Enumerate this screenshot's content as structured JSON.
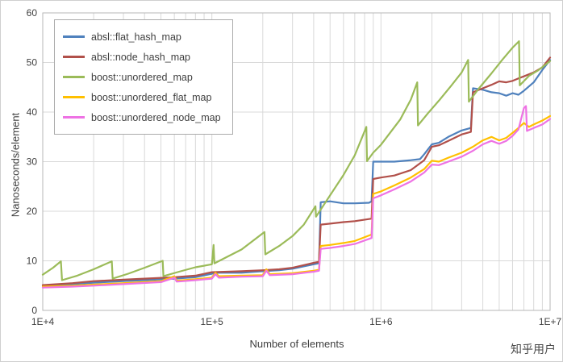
{
  "watermark": {
    "text": "知乎用户"
  },
  "chart_data": {
    "type": "line",
    "title": "",
    "xlabel": "Number of elements",
    "ylabel": "Nanoseconds/element",
    "x_scale": "log",
    "xlim": [
      10000,
      10000000
    ],
    "ylim": [
      0,
      60
    ],
    "y_ticks": [
      0,
      10,
      20,
      30,
      40,
      50,
      60
    ],
    "x_tick_values": [
      10000,
      100000,
      1000000,
      10000000
    ],
    "x_tick_labels": [
      "1E+4",
      "1E+5",
      "1E+6",
      "1E+7"
    ],
    "grid": true,
    "legend_position": "top-left",
    "grid_color": "#d9d9d9",
    "border_color": "#b7b7b7",
    "tick_color": "#3f3f3f",
    "series": [
      {
        "name": "absl::flat_hash_map",
        "color": "#4f81bd",
        "points": [
          [
            10000,
            5.0
          ],
          [
            15000,
            5.3
          ],
          [
            20000,
            5.6
          ],
          [
            30000,
            5.9
          ],
          [
            40000,
            6.1
          ],
          [
            60000,
            6.4
          ],
          [
            80000,
            6.7
          ],
          [
            100000,
            7.4
          ],
          [
            110000,
            7.6
          ],
          [
            150000,
            7.6
          ],
          [
            200000,
            7.9
          ],
          [
            250000,
            8.1
          ],
          [
            300000,
            8.4
          ],
          [
            400000,
            9.3
          ],
          [
            430000,
            9.5
          ],
          [
            440000,
            21.8
          ],
          [
            500000,
            22.0
          ],
          [
            600000,
            21.6
          ],
          [
            700000,
            21.6
          ],
          [
            850000,
            21.7
          ],
          [
            880000,
            22.0
          ],
          [
            900000,
            30.0
          ],
          [
            1000000,
            30.0
          ],
          [
            1200000,
            30.0
          ],
          [
            1500000,
            30.3
          ],
          [
            1700000,
            30.5
          ],
          [
            1800000,
            31.5
          ],
          [
            2000000,
            33.5
          ],
          [
            2200000,
            33.8
          ],
          [
            2500000,
            35.0
          ],
          [
            3000000,
            36.3
          ],
          [
            3400000,
            36.8
          ],
          [
            3500000,
            44.8
          ],
          [
            4000000,
            44.5
          ],
          [
            4500000,
            44.0
          ],
          [
            5000000,
            43.8
          ],
          [
            5500000,
            43.3
          ],
          [
            6000000,
            43.8
          ],
          [
            6500000,
            43.5
          ],
          [
            7000000,
            44.3
          ],
          [
            8000000,
            46.0
          ],
          [
            9000000,
            48.5
          ],
          [
            10000000,
            50.5
          ]
        ]
      },
      {
        "name": "absl::node_hash_map",
        "color": "#b1504a",
        "points": [
          [
            10000,
            5.1
          ],
          [
            15000,
            5.5
          ],
          [
            20000,
            5.9
          ],
          [
            30000,
            6.2
          ],
          [
            40000,
            6.4
          ],
          [
            60000,
            6.7
          ],
          [
            80000,
            7.0
          ],
          [
            100000,
            7.7
          ],
          [
            150000,
            7.9
          ],
          [
            200000,
            8.1
          ],
          [
            250000,
            8.3
          ],
          [
            300000,
            8.6
          ],
          [
            400000,
            9.6
          ],
          [
            430000,
            9.8
          ],
          [
            440000,
            17.3
          ],
          [
            500000,
            17.5
          ],
          [
            600000,
            17.8
          ],
          [
            700000,
            18.0
          ],
          [
            880000,
            18.5
          ],
          [
            900000,
            26.5
          ],
          [
            1000000,
            26.8
          ],
          [
            1200000,
            27.2
          ],
          [
            1500000,
            28.3
          ],
          [
            1800000,
            30.3
          ],
          [
            2000000,
            33.0
          ],
          [
            2200000,
            33.3
          ],
          [
            2500000,
            34.2
          ],
          [
            3000000,
            35.5
          ],
          [
            3400000,
            36.0
          ],
          [
            3500000,
            44.0
          ],
          [
            4000000,
            44.8
          ],
          [
            4500000,
            45.5
          ],
          [
            5000000,
            46.2
          ],
          [
            5500000,
            46.0
          ],
          [
            6000000,
            46.3
          ],
          [
            6500000,
            46.8
          ],
          [
            7000000,
            47.2
          ],
          [
            8000000,
            48.0
          ],
          [
            9000000,
            49.0
          ],
          [
            10000000,
            51.0
          ]
        ]
      },
      {
        "name": "boost::unordered_map",
        "color": "#9bbb59",
        "points": [
          [
            10000,
            7.2
          ],
          [
            11500,
            8.6
          ],
          [
            12800,
            9.9
          ],
          [
            13000,
            6.1
          ],
          [
            16000,
            7.0
          ],
          [
            20000,
            8.3
          ],
          [
            25600,
            9.9
          ],
          [
            25900,
            6.4
          ],
          [
            32000,
            7.4
          ],
          [
            40000,
            8.6
          ],
          [
            51200,
            10.0
          ],
          [
            51700,
            6.9
          ],
          [
            64000,
            7.8
          ],
          [
            80000,
            8.7
          ],
          [
            100000,
            9.3
          ],
          [
            102400,
            13.2
          ],
          [
            103500,
            9.5
          ],
          [
            150000,
            12.3
          ],
          [
            204800,
            15.8
          ],
          [
            207000,
            11.3
          ],
          [
            250000,
            13.0
          ],
          [
            300000,
            15.0
          ],
          [
            350000,
            17.3
          ],
          [
            409600,
            21.0
          ],
          [
            413000,
            18.9
          ],
          [
            500000,
            23.2
          ],
          [
            600000,
            27.3
          ],
          [
            700000,
            31.3
          ],
          [
            819200,
            37.0
          ],
          [
            827000,
            30.1
          ],
          [
            900000,
            31.8
          ],
          [
            1000000,
            33.4
          ],
          [
            1300000,
            38.5
          ],
          [
            1500000,
            42.5
          ],
          [
            1638400,
            46.0
          ],
          [
            1655000,
            37.3
          ],
          [
            1900000,
            39.8
          ],
          [
            2200000,
            42.3
          ],
          [
            2600000,
            45.3
          ],
          [
            3000000,
            48.0
          ],
          [
            3276800,
            50.5
          ],
          [
            3310000,
            42.1
          ],
          [
            3800000,
            44.8
          ],
          [
            4500000,
            47.8
          ],
          [
            5200000,
            50.5
          ],
          [
            6000000,
            53.0
          ],
          [
            6553600,
            54.3
          ],
          [
            6620000,
            45.4
          ],
          [
            7500000,
            47.3
          ],
          [
            8500000,
            48.4
          ],
          [
            10000000,
            50.3
          ]
        ]
      },
      {
        "name": "boost::unordered_flat_map",
        "color": "#ffc000",
        "points": [
          [
            10000,
            4.8
          ],
          [
            15000,
            5.0
          ],
          [
            20000,
            5.2
          ],
          [
            30000,
            5.5
          ],
          [
            50000,
            5.9
          ],
          [
            60000,
            6.9
          ],
          [
            62000,
            6.0
          ],
          [
            80000,
            6.3
          ],
          [
            100000,
            6.6
          ],
          [
            105000,
            7.6
          ],
          [
            110000,
            6.9
          ],
          [
            150000,
            7.0
          ],
          [
            200000,
            7.1
          ],
          [
            210000,
            8.3
          ],
          [
            220000,
            7.3
          ],
          [
            300000,
            7.5
          ],
          [
            400000,
            8.0
          ],
          [
            430000,
            8.2
          ],
          [
            440000,
            13.0
          ],
          [
            500000,
            13.2
          ],
          [
            600000,
            13.6
          ],
          [
            700000,
            14.0
          ],
          [
            880000,
            15.3
          ],
          [
            900000,
            23.5
          ],
          [
            1000000,
            24.0
          ],
          [
            1200000,
            25.2
          ],
          [
            1500000,
            26.8
          ],
          [
            1800000,
            28.5
          ],
          [
            2000000,
            30.2
          ],
          [
            2200000,
            30.0
          ],
          [
            2500000,
            30.8
          ],
          [
            3000000,
            31.8
          ],
          [
            3500000,
            33.0
          ],
          [
            4000000,
            34.3
          ],
          [
            4500000,
            35.0
          ],
          [
            5000000,
            34.3
          ],
          [
            5500000,
            34.8
          ],
          [
            6000000,
            35.8
          ],
          [
            6500000,
            36.8
          ],
          [
            7000000,
            37.8
          ],
          [
            7500000,
            37.0
          ],
          [
            8000000,
            37.5
          ],
          [
            9000000,
            38.3
          ],
          [
            10000000,
            39.2
          ]
        ]
      },
      {
        "name": "boost::unordered_node_map",
        "color": "#ee72e4",
        "points": [
          [
            10000,
            4.6
          ],
          [
            15000,
            4.8
          ],
          [
            20000,
            5.0
          ],
          [
            30000,
            5.3
          ],
          [
            50000,
            5.7
          ],
          [
            60000,
            6.6
          ],
          [
            62000,
            5.8
          ],
          [
            80000,
            6.1
          ],
          [
            100000,
            6.4
          ],
          [
            105000,
            7.3
          ],
          [
            110000,
            6.6
          ],
          [
            150000,
            6.8
          ],
          [
            200000,
            6.9
          ],
          [
            210000,
            8.0
          ],
          [
            220000,
            7.1
          ],
          [
            300000,
            7.3
          ],
          [
            400000,
            7.8
          ],
          [
            430000,
            8.0
          ],
          [
            440000,
            12.4
          ],
          [
            500000,
            12.6
          ],
          [
            600000,
            13.0
          ],
          [
            700000,
            13.4
          ],
          [
            880000,
            14.6
          ],
          [
            900000,
            22.6
          ],
          [
            1000000,
            23.2
          ],
          [
            1200000,
            24.4
          ],
          [
            1500000,
            26.0
          ],
          [
            1800000,
            27.8
          ],
          [
            2000000,
            29.4
          ],
          [
            2200000,
            29.3
          ],
          [
            2500000,
            30.0
          ],
          [
            3000000,
            31.0
          ],
          [
            3500000,
            32.2
          ],
          [
            4000000,
            33.5
          ],
          [
            4500000,
            34.2
          ],
          [
            5000000,
            33.6
          ],
          [
            5500000,
            34.2
          ],
          [
            6000000,
            35.2
          ],
          [
            6500000,
            36.5
          ],
          [
            7000000,
            40.8
          ],
          [
            7200000,
            41.2
          ],
          [
            7300000,
            36.2
          ],
          [
            8000000,
            36.8
          ],
          [
            9000000,
            37.5
          ],
          [
            10000000,
            38.6
          ]
        ]
      }
    ]
  }
}
